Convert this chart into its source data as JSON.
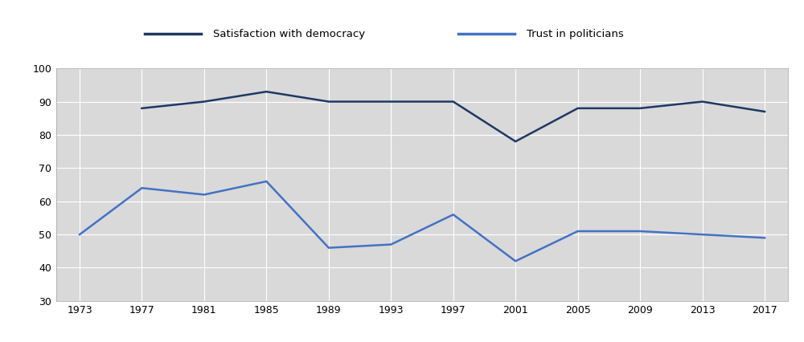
{
  "satisfaction_years": [
    1977,
    1981,
    1985,
    1989,
    1993,
    1997,
    2001,
    2005,
    2009,
    2013,
    2017
  ],
  "satisfaction_values": [
    88,
    90,
    93,
    90,
    90,
    90,
    78,
    88,
    88,
    90,
    87
  ],
  "trust_years": [
    1973,
    1977,
    1981,
    1985,
    1989,
    1993,
    1997,
    2001,
    2005,
    2009,
    2013,
    2017
  ],
  "trust_values": [
    50,
    64,
    62,
    66,
    46,
    47,
    56,
    42,
    51,
    51,
    50,
    49
  ],
  "satisfaction_color": "#1f3864",
  "trust_color": "#4472c4",
  "plot_bg_color": "#d9d9d9",
  "fig_bg_color": "#ffffff",
  "legend_bg_color": "#d9d9d9",
  "ylim": [
    30,
    100
  ],
  "yticks": [
    30,
    40,
    50,
    60,
    70,
    80,
    90,
    100
  ],
  "xticks": [
    1973,
    1977,
    1981,
    1985,
    1989,
    1993,
    1997,
    2001,
    2005,
    2009,
    2013,
    2017
  ],
  "xlim_min": 1971.5,
  "xlim_max": 2018.5,
  "legend_satisfaction": "Satisfaction with democracy",
  "legend_trust": "Trust in politicians",
  "grid_color": "#ffffff",
  "line_width": 1.8,
  "tick_fontsize": 9,
  "legend_fontsize": 9.5
}
